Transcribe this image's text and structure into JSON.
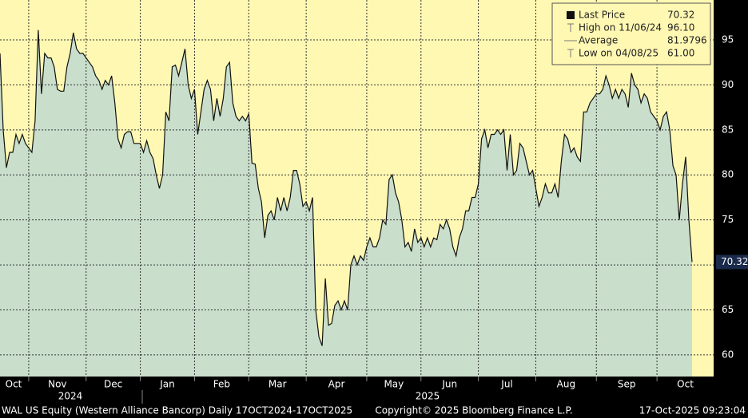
{
  "chart_data": {
    "type": "area",
    "series": [
      {
        "name": "Last Price",
        "color": "#111111",
        "fill": "#c9dfcc",
        "values": [
          93.5,
          85,
          80.8,
          82.5,
          82.5,
          84.5,
          83.5,
          84.5,
          83.5,
          83,
          82.5,
          86,
          96.1,
          89,
          93.5,
          93,
          93,
          92,
          89.5,
          89.3,
          89.3,
          92,
          93.5,
          95.8,
          94,
          93.5,
          93.5,
          93,
          92.5,
          92,
          91,
          90.5,
          89.5,
          90.5,
          90,
          91,
          88,
          84,
          83,
          84.5,
          84.8,
          84.8,
          83.5,
          83.5,
          83.5,
          82.5,
          83.8,
          82.5,
          81.8,
          80,
          78.5,
          80,
          87,
          86,
          92,
          92.2,
          91,
          92.5,
          94,
          90,
          88.5,
          89.5,
          84.5,
          87,
          89.5,
          90.5,
          89.5,
          86,
          88.5,
          86.5,
          88.5,
          92,
          92.5,
          88,
          86.5,
          86,
          86.5,
          86,
          86.8,
          81.3,
          81.2,
          78.5,
          77,
          73,
          75.5,
          76,
          75,
          77.5,
          76,
          77.5,
          76,
          77.5,
          80.5,
          80.5,
          79,
          76.5,
          77,
          76,
          77.5,
          65,
          62,
          61,
          68.5,
          63.3,
          63.5,
          65.5,
          66,
          65,
          66,
          65,
          70,
          71,
          70,
          71,
          70.5,
          72,
          73,
          72,
          72,
          73,
          75,
          74.5,
          79.5,
          80,
          78,
          77,
          75,
          72,
          72.5,
          71.5,
          74,
          72.5,
          73,
          72,
          73,
          72,
          73,
          72.8,
          74.5,
          74,
          75,
          74,
          72,
          71,
          73,
          74,
          76,
          76,
          77.5,
          77.5,
          79,
          84,
          85,
          83,
          84.5,
          84.5,
          85,
          84.5,
          85,
          80.5,
          84.5,
          80,
          80.5,
          83.5,
          83,
          81.5,
          80,
          80.5,
          78.5,
          76.5,
          77.5,
          79,
          78,
          78,
          79,
          77.5,
          81.5,
          84.5,
          84,
          82.5,
          83,
          82,
          81.5,
          87,
          87,
          88,
          88.5,
          89,
          89,
          89.5,
          91,
          90,
          88.5,
          89.5,
          88.5,
          89.5,
          89,
          87.5,
          91.3,
          90,
          89.5,
          88,
          89,
          88.5,
          87,
          86.5,
          86,
          85,
          86.5,
          87,
          85,
          81,
          80,
          75,
          79,
          82,
          75,
          70.32
        ]
      }
    ],
    "ylim": [
      57.6,
      99.43
    ],
    "yticks": [
      60,
      65,
      70,
      75,
      80,
      85,
      90,
      95
    ],
    "grid": true,
    "xticks": [
      {
        "value": 0,
        "label": "Oct"
      },
      {
        "value": 9,
        "label": "Nov"
      },
      {
        "value": 27,
        "label": "Dec"
      },
      {
        "value": 44,
        "label": "Jan"
      },
      {
        "value": 61,
        "label": "Feb"
      },
      {
        "value": 78,
        "label": "Mar"
      },
      {
        "value": 96,
        "label": "Apr"
      },
      {
        "value": 115,
        "label": "May"
      },
      {
        "value": 132,
        "label": "Jun"
      },
      {
        "value": 150,
        "label": "Jul"
      },
      {
        "value": 168,
        "label": "Aug"
      },
      {
        "value": 187,
        "label": "Sep"
      },
      {
        "value": 206,
        "label": "Oct"
      }
    ],
    "year_labels": [
      "2024",
      "2025"
    ],
    "legend_stats": [
      {
        "name": "Last Price",
        "value": 70.32
      },
      {
        "name": "High on 11/06/24",
        "value": 96.1,
        "value_label": "96.10"
      },
      {
        "name": "Average",
        "value": 81.9796
      },
      {
        "name": "Low on 04/08/25",
        "value": 61,
        "value_label": "61.00"
      }
    ],
    "legend": "top-right",
    "footer": {
      "security": "WAL US Equity (Western Alliance Bancorp) Daily 17OCT2024-17OCT2025",
      "copyright": "Copyright© 2025 Bloomberg Finance L.P.",
      "timestamp": "17-Oct-2025 09:23:04"
    }
  }
}
